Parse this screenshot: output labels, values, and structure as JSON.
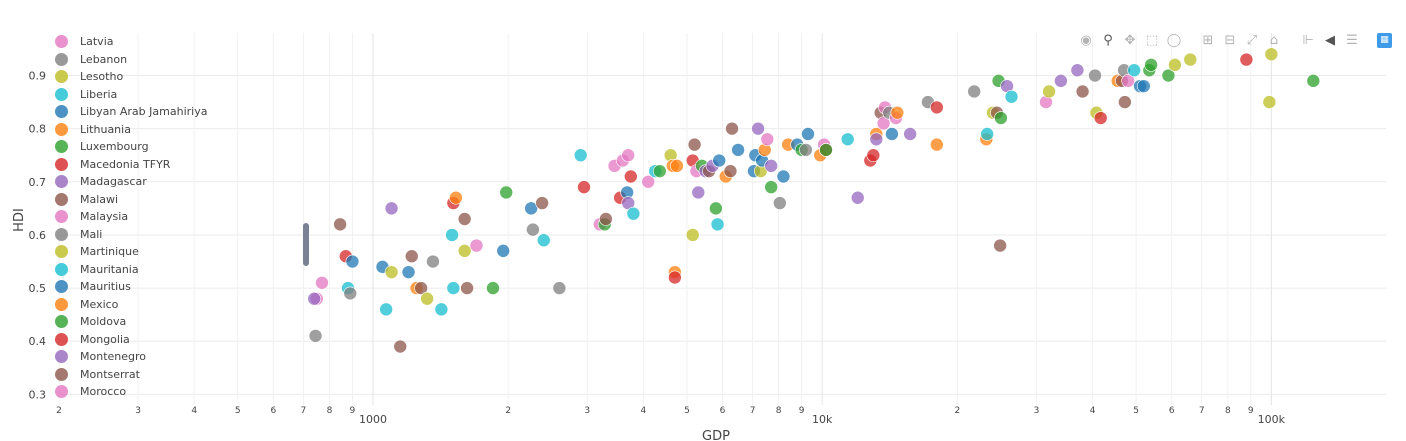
{
  "chart_data": {
    "type": "scatter",
    "title": "",
    "xlabel": "GDP",
    "ylabel": "HDI",
    "xscale": "log",
    "xlim": [
      200,
      180000
    ],
    "ylim": [
      0.28,
      0.98
    ],
    "grid": true,
    "legend_placement": "left",
    "y_ticks": [
      "0.3",
      "0.4",
      "0.5",
      "0.6",
      "0.7",
      "0.8",
      "0.9"
    ],
    "x_tick_labels": [
      {
        "v": 200,
        "t": "2"
      },
      {
        "v": 300,
        "t": "3"
      },
      {
        "v": 400,
        "t": "4"
      },
      {
        "v": 500,
        "t": "5"
      },
      {
        "v": 600,
        "t": "6"
      },
      {
        "v": 700,
        "t": "7"
      },
      {
        "v": 800,
        "t": "8"
      },
      {
        "v": 900,
        "t": "9"
      },
      {
        "v": 1000,
        "t": "1000"
      },
      {
        "v": 2000,
        "t": "2"
      },
      {
        "v": 3000,
        "t": "3"
      },
      {
        "v": 4000,
        "t": "4"
      },
      {
        "v": 5000,
        "t": "5"
      },
      {
        "v": 6000,
        "t": "6"
      },
      {
        "v": 7000,
        "t": "7"
      },
      {
        "v": 8000,
        "t": "8"
      },
      {
        "v": 9000,
        "t": "9"
      },
      {
        "v": 10000,
        "t": "10k"
      },
      {
        "v": 20000,
        "t": "2"
      },
      {
        "v": 30000,
        "t": "3"
      },
      {
        "v": 40000,
        "t": "4"
      },
      {
        "v": 50000,
        "t": "5"
      },
      {
        "v": 60000,
        "t": "6"
      },
      {
        "v": 70000,
        "t": "7"
      },
      {
        "v": 80000,
        "t": "8"
      },
      {
        "v": 90000,
        "t": "9"
      },
      {
        "v": 100000,
        "t": "100k"
      }
    ],
    "legend": [
      {
        "name": "Latvia",
        "color": "#e377c2"
      },
      {
        "name": "Lebanon",
        "color": "#7f7f7f"
      },
      {
        "name": "Lesotho",
        "color": "#bcbd22"
      },
      {
        "name": "Liberia",
        "color": "#17becf"
      },
      {
        "name": "Libyan Arab Jamahiriya",
        "color": "#1f77b4"
      },
      {
        "name": "Lithuania",
        "color": "#ff7f0e"
      },
      {
        "name": "Luxembourg",
        "color": "#2ca02c"
      },
      {
        "name": "Macedonia TFYR",
        "color": "#d62728"
      },
      {
        "name": "Madagascar",
        "color": "#9467bd"
      },
      {
        "name": "Malawi",
        "color": "#8c564b"
      },
      {
        "name": "Malaysia",
        "color": "#e377c2"
      },
      {
        "name": "Mali",
        "color": "#7f7f7f"
      },
      {
        "name": "Martinique",
        "color": "#bcbd22"
      },
      {
        "name": "Mauritania",
        "color": "#17becf"
      },
      {
        "name": "Mauritius",
        "color": "#1f77b4"
      },
      {
        "name": "Mexico",
        "color": "#ff7f0e"
      },
      {
        "name": "Moldova",
        "color": "#2ca02c"
      },
      {
        "name": "Mongolia",
        "color": "#d62728"
      },
      {
        "name": "Montenegro",
        "color": "#9467bd"
      },
      {
        "name": "Montserrat",
        "color": "#8c564b"
      },
      {
        "name": "Morocco",
        "color": "#e377c2"
      }
    ],
    "points": [
      {
        "x": 750,
        "y": 0.48,
        "c": "#e377c2"
      },
      {
        "x": 740,
        "y": 0.48,
        "c": "#9467bd"
      },
      {
        "x": 770,
        "y": 0.51,
        "c": "#e377c2"
      },
      {
        "x": 745,
        "y": 0.41,
        "c": "#7f7f7f"
      },
      {
        "x": 845,
        "y": 0.62,
        "c": "#8c564b"
      },
      {
        "x": 870,
        "y": 0.56,
        "c": "#d62728"
      },
      {
        "x": 880,
        "y": 0.5,
        "c": "#17becf"
      },
      {
        "x": 890,
        "y": 0.49,
        "c": "#7f7f7f"
      },
      {
        "x": 900,
        "y": 0.55,
        "c": "#1f77b4"
      },
      {
        "x": 1050,
        "y": 0.54,
        "c": "#1f77b4"
      },
      {
        "x": 1070,
        "y": 0.46,
        "c": "#17becf"
      },
      {
        "x": 1100,
        "y": 0.65,
        "c": "#9467bd"
      },
      {
        "x": 1100,
        "y": 0.53,
        "c": "#bcbd22"
      },
      {
        "x": 1150,
        "y": 0.39,
        "c": "#8c564b"
      },
      {
        "x": 1200,
        "y": 0.53,
        "c": "#1f77b4"
      },
      {
        "x": 1220,
        "y": 0.56,
        "c": "#8c564b"
      },
      {
        "x": 1250,
        "y": 0.5,
        "c": "#ff7f0e"
      },
      {
        "x": 1280,
        "y": 0.5,
        "c": "#8c564b"
      },
      {
        "x": 1320,
        "y": 0.48,
        "c": "#bcbd22"
      },
      {
        "x": 1360,
        "y": 0.55,
        "c": "#7f7f7f"
      },
      {
        "x": 1420,
        "y": 0.46,
        "c": "#17becf"
      },
      {
        "x": 1500,
        "y": 0.6,
        "c": "#17becf"
      },
      {
        "x": 1510,
        "y": 0.66,
        "c": "#d62728"
      },
      {
        "x": 1530,
        "y": 0.67,
        "c": "#ff7f0e"
      },
      {
        "x": 1510,
        "y": 0.5,
        "c": "#17becf"
      },
      {
        "x": 1600,
        "y": 0.63,
        "c": "#8c564b"
      },
      {
        "x": 1600,
        "y": 0.57,
        "c": "#bcbd22"
      },
      {
        "x": 1620,
        "y": 0.5,
        "c": "#8c564b"
      },
      {
        "x": 1700,
        "y": 0.58,
        "c": "#e377c2"
      },
      {
        "x": 1850,
        "y": 0.5,
        "c": "#2ca02c"
      },
      {
        "x": 1950,
        "y": 0.57,
        "c": "#1f77b4"
      },
      {
        "x": 1980,
        "y": 0.68,
        "c": "#2ca02c"
      },
      {
        "x": 2250,
        "y": 0.65,
        "c": "#1f77b4"
      },
      {
        "x": 2270,
        "y": 0.61,
        "c": "#7f7f7f"
      },
      {
        "x": 2380,
        "y": 0.66,
        "c": "#8c564b"
      },
      {
        "x": 2400,
        "y": 0.59,
        "c": "#17becf"
      },
      {
        "x": 2600,
        "y": 0.5,
        "c": "#7f7f7f"
      },
      {
        "x": 2900,
        "y": 0.75,
        "c": "#17becf"
      },
      {
        "x": 2950,
        "y": 0.69,
        "c": "#d62728"
      },
      {
        "x": 3200,
        "y": 0.62,
        "c": "#e377c2"
      },
      {
        "x": 3280,
        "y": 0.62,
        "c": "#2ca02c"
      },
      {
        "x": 3300,
        "y": 0.63,
        "c": "#8c564b"
      },
      {
        "x": 3450,
        "y": 0.73,
        "c": "#e377c2"
      },
      {
        "x": 3550,
        "y": 0.67,
        "c": "#d62728"
      },
      {
        "x": 3600,
        "y": 0.74,
        "c": "#e377c2"
      },
      {
        "x": 3680,
        "y": 0.68,
        "c": "#1f77b4"
      },
      {
        "x": 3700,
        "y": 0.66,
        "c": "#9467bd"
      },
      {
        "x": 3700,
        "y": 0.75,
        "c": "#e377c2"
      },
      {
        "x": 3750,
        "y": 0.71,
        "c": "#d62728"
      },
      {
        "x": 3800,
        "y": 0.64,
        "c": "#17becf"
      },
      {
        "x": 4100,
        "y": 0.7,
        "c": "#e377c2"
      },
      {
        "x": 4250,
        "y": 0.72,
        "c": "#17becf"
      },
      {
        "x": 4350,
        "y": 0.72,
        "c": "#2ca02c"
      },
      {
        "x": 4600,
        "y": 0.75,
        "c": "#bcbd22"
      },
      {
        "x": 4650,
        "y": 0.73,
        "c": "#ff7f0e"
      },
      {
        "x": 4700,
        "y": 0.53,
        "c": "#ff7f0e"
      },
      {
        "x": 4700,
        "y": 0.52,
        "c": "#d62728"
      },
      {
        "x": 4750,
        "y": 0.73,
        "c": "#ff7f0e"
      },
      {
        "x": 5150,
        "y": 0.6,
        "c": "#bcbd22"
      },
      {
        "x": 5150,
        "y": 0.74,
        "c": "#d62728"
      },
      {
        "x": 5200,
        "y": 0.77,
        "c": "#8c564b"
      },
      {
        "x": 5250,
        "y": 0.72,
        "c": "#e377c2"
      },
      {
        "x": 5300,
        "y": 0.68,
        "c": "#9467bd"
      },
      {
        "x": 5400,
        "y": 0.73,
        "c": "#2ca02c"
      },
      {
        "x": 5500,
        "y": 0.72,
        "c": "#9467bd"
      },
      {
        "x": 5600,
        "y": 0.72,
        "c": "#8c564b"
      },
      {
        "x": 5700,
        "y": 0.73,
        "c": "#9467bd"
      },
      {
        "x": 5800,
        "y": 0.65,
        "c": "#2ca02c"
      },
      {
        "x": 5850,
        "y": 0.62,
        "c": "#17becf"
      },
      {
        "x": 5900,
        "y": 0.74,
        "c": "#1f77b4"
      },
      {
        "x": 6100,
        "y": 0.71,
        "c": "#ff7f0e"
      },
      {
        "x": 6250,
        "y": 0.72,
        "c": "#8c564b"
      },
      {
        "x": 6300,
        "y": 0.8,
        "c": "#8c564b"
      },
      {
        "x": 6500,
        "y": 0.76,
        "c": "#1f77b4"
      },
      {
        "x": 7050,
        "y": 0.72,
        "c": "#1f77b4"
      },
      {
        "x": 7100,
        "y": 0.75,
        "c": "#1f77b4"
      },
      {
        "x": 7200,
        "y": 0.8,
        "c": "#9467bd"
      },
      {
        "x": 7300,
        "y": 0.72,
        "c": "#bcbd22"
      },
      {
        "x": 7350,
        "y": 0.74,
        "c": "#1f77b4"
      },
      {
        "x": 7450,
        "y": 0.76,
        "c": "#ff7f0e"
      },
      {
        "x": 7550,
        "y": 0.78,
        "c": "#e377c2"
      },
      {
        "x": 7700,
        "y": 0.73,
        "c": "#9467bd"
      },
      {
        "x": 7700,
        "y": 0.69,
        "c": "#2ca02c"
      },
      {
        "x": 8050,
        "y": 0.66,
        "c": "#7f7f7f"
      },
      {
        "x": 8200,
        "y": 0.71,
        "c": "#1f77b4"
      },
      {
        "x": 8400,
        "y": 0.77,
        "c": "#ff7f0e"
      },
      {
        "x": 8800,
        "y": 0.77,
        "c": "#1f77b4"
      },
      {
        "x": 9000,
        "y": 0.76,
        "c": "#2ca02c"
      },
      {
        "x": 9200,
        "y": 0.76,
        "c": "#7f7f7f"
      },
      {
        "x": 9300,
        "y": 0.79,
        "c": "#1f77b4"
      },
      {
        "x": 9900,
        "y": 0.75,
        "c": "#ff7f0e"
      },
      {
        "x": 10100,
        "y": 0.77,
        "c": "#e377c2"
      },
      {
        "x": 10200,
        "y": 0.76,
        "c": "#d62728"
      },
      {
        "x": 10200,
        "y": 0.76,
        "c": "#2ca02c"
      },
      {
        "x": 11400,
        "y": 0.78,
        "c": "#17becf"
      },
      {
        "x": 12000,
        "y": 0.67,
        "c": "#9467bd"
      },
      {
        "x": 12800,
        "y": 0.74,
        "c": "#d62728"
      },
      {
        "x": 13000,
        "y": 0.75,
        "c": "#d62728"
      },
      {
        "x": 13200,
        "y": 0.79,
        "c": "#ff7f0e"
      },
      {
        "x": 13200,
        "y": 0.78,
        "c": "#9467bd"
      },
      {
        "x": 13500,
        "y": 0.83,
        "c": "#8c564b"
      },
      {
        "x": 13700,
        "y": 0.81,
        "c": "#e377c2"
      },
      {
        "x": 13800,
        "y": 0.84,
        "c": "#e377c2"
      },
      {
        "x": 14100,
        "y": 0.83,
        "c": "#7f7f7f"
      },
      {
        "x": 14300,
        "y": 0.79,
        "c": "#1f77b4"
      },
      {
        "x": 14600,
        "y": 0.82,
        "c": "#e377c2"
      },
      {
        "x": 14700,
        "y": 0.83,
        "c": "#ff7f0e"
      },
      {
        "x": 15700,
        "y": 0.79,
        "c": "#9467bd"
      },
      {
        "x": 17200,
        "y": 0.85,
        "c": "#7f7f7f"
      },
      {
        "x": 18000,
        "y": 0.77,
        "c": "#ff7f0e"
      },
      {
        "x": 18000,
        "y": 0.84,
        "c": "#d62728"
      },
      {
        "x": 21800,
        "y": 0.87,
        "c": "#7f7f7f"
      },
      {
        "x": 23200,
        "y": 0.78,
        "c": "#ff7f0e"
      },
      {
        "x": 23300,
        "y": 0.79,
        "c": "#17becf"
      },
      {
        "x": 24000,
        "y": 0.83,
        "c": "#bcbd22"
      },
      {
        "x": 24500,
        "y": 0.83,
        "c": "#8c564b"
      },
      {
        "x": 24700,
        "y": 0.89,
        "c": "#2ca02c"
      },
      {
        "x": 24900,
        "y": 0.58,
        "c": "#8c564b"
      },
      {
        "x": 25000,
        "y": 0.82,
        "c": "#2ca02c"
      },
      {
        "x": 25800,
        "y": 0.88,
        "c": "#9467bd"
      },
      {
        "x": 26400,
        "y": 0.86,
        "c": "#17becf"
      },
      {
        "x": 31500,
        "y": 0.85,
        "c": "#e377c2"
      },
      {
        "x": 32000,
        "y": 0.87,
        "c": "#bcbd22"
      },
      {
        "x": 34000,
        "y": 0.89,
        "c": "#9467bd"
      },
      {
        "x": 37000,
        "y": 0.91,
        "c": "#9467bd"
      },
      {
        "x": 38000,
        "y": 0.87,
        "c": "#8c564b"
      },
      {
        "x": 40500,
        "y": 0.9,
        "c": "#7f7f7f"
      },
      {
        "x": 40800,
        "y": 0.83,
        "c": "#bcbd22"
      },
      {
        "x": 41700,
        "y": 0.82,
        "c": "#d62728"
      },
      {
        "x": 45500,
        "y": 0.89,
        "c": "#ff7f0e"
      },
      {
        "x": 46500,
        "y": 0.89,
        "c": "#8c564b"
      },
      {
        "x": 47000,
        "y": 0.91,
        "c": "#7f7f7f"
      },
      {
        "x": 47200,
        "y": 0.85,
        "c": "#8c564b"
      },
      {
        "x": 48000,
        "y": 0.89,
        "c": "#e377c2"
      },
      {
        "x": 49500,
        "y": 0.91,
        "c": "#17becf"
      },
      {
        "x": 51000,
        "y": 0.88,
        "c": "#1f77b4"
      },
      {
        "x": 52000,
        "y": 0.88,
        "c": "#1f77b4"
      },
      {
        "x": 53500,
        "y": 0.91,
        "c": "#2ca02c"
      },
      {
        "x": 54000,
        "y": 0.92,
        "c": "#2ca02c"
      },
      {
        "x": 59000,
        "y": 0.9,
        "c": "#2ca02c"
      },
      {
        "x": 61000,
        "y": 0.92,
        "c": "#bcbd22"
      },
      {
        "x": 66000,
        "y": 0.93,
        "c": "#bcbd22"
      },
      {
        "x": 88000,
        "y": 0.93,
        "c": "#d62728"
      },
      {
        "x": 99000,
        "y": 0.85,
        "c": "#bcbd22"
      },
      {
        "x": 100000,
        "y": 0.94,
        "c": "#bcbd22"
      },
      {
        "x": 124000,
        "y": 0.89,
        "c": "#2ca02c"
      }
    ]
  },
  "modebar": {
    "icons": [
      "camera-icon",
      "zoom-icon",
      "pan-icon",
      "box-select-icon",
      "lasso-icon",
      "zoom-in-icon",
      "zoom-out-icon",
      "autoscale-icon",
      "reset-axes-icon",
      "spike-lines-icon",
      "hover-closest-icon",
      "hover-compare-icon",
      "plotly-logo-icon"
    ]
  }
}
